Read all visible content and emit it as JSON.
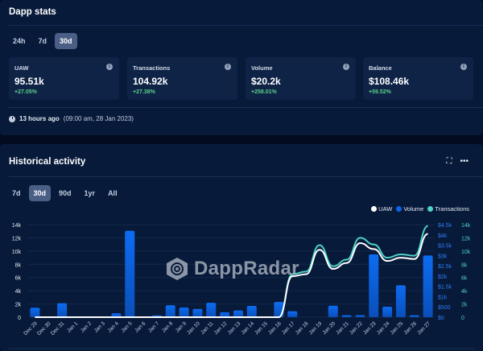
{
  "stats": {
    "title": "Dapp stats",
    "tabs": [
      {
        "label": "24h"
      },
      {
        "label": "7d"
      },
      {
        "label": "30d"
      }
    ],
    "active_tab": "30d",
    "cards": [
      {
        "label": "UAW",
        "value": "95.51k",
        "change": "+27.05%"
      },
      {
        "label": "Transactions",
        "value": "104.92k",
        "change": "+27.38%"
      },
      {
        "label": "Volume",
        "value": "$20.2k",
        "change": "+258.01%"
      },
      {
        "label": "Balance",
        "value": "$108.46k",
        "change": "+59.52%"
      }
    ],
    "updated_relative": "13 hours ago",
    "updated_absolute": "(09:00 am, 28 Jan 2023)"
  },
  "history": {
    "title": "Historical activity",
    "tabs": [
      {
        "label": "7d"
      },
      {
        "label": "30d"
      },
      {
        "label": "90d"
      },
      {
        "label": "1yr"
      },
      {
        "label": "All"
      }
    ],
    "active_tab": "30d",
    "watermark": "DappRadar",
    "colors": {
      "uaw": "#ffffff",
      "volume": "#0b63e5",
      "transactions": "#4fd1c5"
    }
  },
  "chart_data": {
    "type": "bar+line",
    "legend": [
      "UAW",
      "Volume",
      "Transactions"
    ],
    "legend_position": "top-right",
    "categories": [
      "Dec 29",
      "Dec 30",
      "Dec 31",
      "Jan 1",
      "Jan 2",
      "Jan 3",
      "Jan 4",
      "Jan 5",
      "Jan 6",
      "Jan 7",
      "Jan 8",
      "Jan 9",
      "Jan 10",
      "Jan 11",
      "Jan 12",
      "Jan 13",
      "Jan 14",
      "Jan 15",
      "Jan 16",
      "Jan 17",
      "Jan 18",
      "Jan 19",
      "Jan 20",
      "Jan 21",
      "Jan 22",
      "Jan 23",
      "Jan 24",
      "Jan 25",
      "Jan 26",
      "Jan 27"
    ],
    "left_axis": {
      "ticks": [
        "0",
        "2k",
        "4k",
        "6k",
        "8k",
        "10k",
        "12k",
        "14k"
      ],
      "range": [
        0,
        14000
      ]
    },
    "right_axis_volume": {
      "ticks": [
        "$0",
        "$500",
        "$1k",
        "$1.5k",
        "$2k",
        "$2.5k",
        "$3k",
        "$3.5k",
        "$4k",
        "$4.5k"
      ],
      "range": [
        0,
        4500
      ]
    },
    "right_axis_tx": {
      "ticks": [
        "0",
        "2k",
        "4k",
        "6k",
        "8k",
        "10k",
        "12k",
        "14k"
      ],
      "range": [
        0,
        14000
      ]
    },
    "series": [
      {
        "name": "Volume",
        "type": "bar",
        "axis": "volume",
        "values": [
          460,
          0,
          680,
          0,
          0,
          0,
          190,
          4200,
          0,
          90,
          580,
          470,
          400,
          700,
          240,
          330,
          550,
          0,
          740,
          290,
          0,
          0,
          560,
          100,
          100,
          3050,
          510,
          1550,
          100,
          3000
        ]
      },
      {
        "name": "UAW",
        "type": "line",
        "axis": "left",
        "values": [
          0,
          0,
          0,
          0,
          0,
          0,
          0,
          0,
          0,
          0,
          0,
          0,
          0,
          0,
          0,
          0,
          0,
          0,
          0,
          6200,
          6500,
          10200,
          7300,
          8200,
          11200,
          10300,
          8500,
          9000,
          8800,
          12600
        ]
      },
      {
        "name": "Transactions",
        "type": "line",
        "axis": "right_tx",
        "values": [
          0,
          0,
          0,
          0,
          0,
          0,
          0,
          0,
          0,
          0,
          0,
          0,
          0,
          0,
          0,
          0,
          0,
          0,
          0,
          6500,
          6900,
          10900,
          7700,
          8700,
          12000,
          11000,
          9000,
          9500,
          9300,
          13800
        ]
      }
    ]
  }
}
